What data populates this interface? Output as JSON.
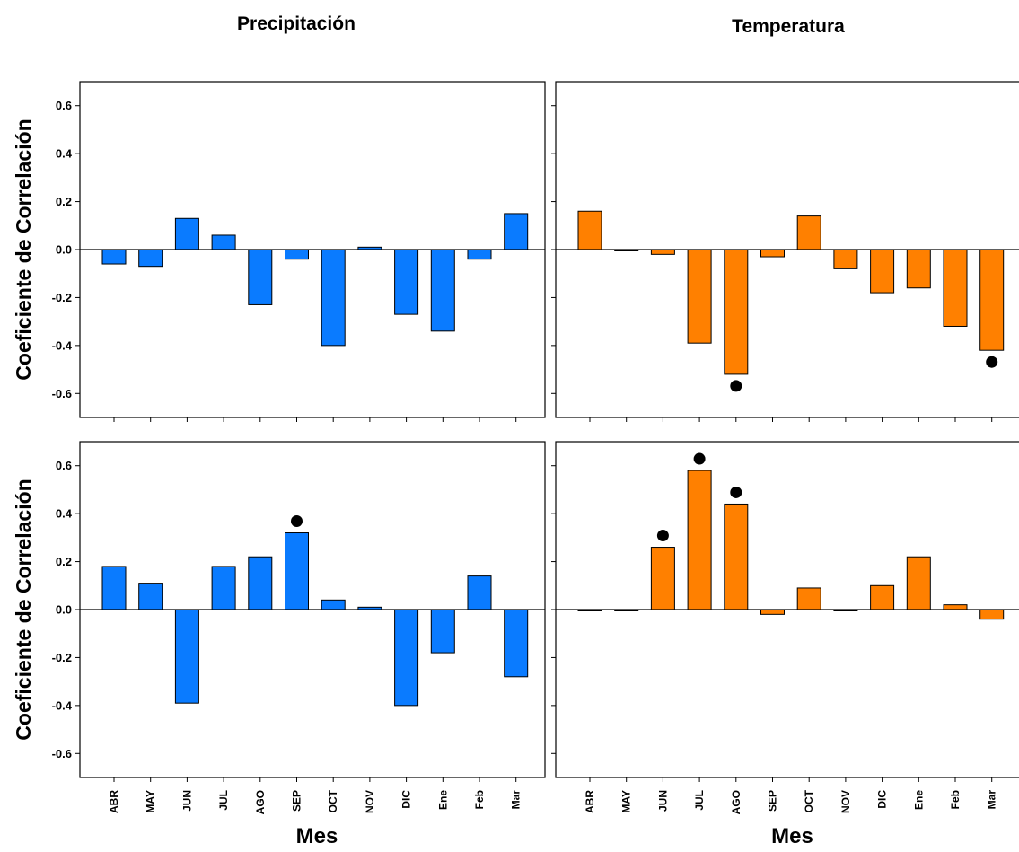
{
  "figure": {
    "column_titles": [
      "Precipitación",
      "Temperatura"
    ],
    "ylabel": "Coeficiente de Correlación",
    "xlabel": "Mes"
  },
  "colors": {
    "precipitation_bar": "#0A7BFF",
    "temperature_bar": "#FF8000",
    "bar_edge": "#000000",
    "significance_marker": "#000000"
  },
  "chart_data": [
    {
      "type": "bar",
      "panel": "top-left",
      "title": "Precipitación",
      "ylabel": "Coeficiente de Correlación",
      "xlabel": "",
      "ylim": [
        -0.7,
        0.7
      ],
      "yticks": [
        -0.6,
        -0.4,
        -0.2,
        0.0,
        0.2,
        0.4,
        0.6
      ],
      "categories": [
        "ABR",
        "MAY",
        "JUN",
        "JUL",
        "AGO",
        "SEP",
        "OCT",
        "NOV",
        "DIC",
        "Ene",
        "Feb",
        "Mar"
      ],
      "show_category_labels": false,
      "values": [
        -0.06,
        -0.07,
        0.13,
        0.06,
        -0.23,
        -0.04,
        -0.4,
        0.01,
        -0.27,
        -0.34,
        -0.04,
        0.15
      ],
      "significant": [
        false,
        false,
        false,
        false,
        false,
        false,
        false,
        false,
        false,
        false,
        false,
        false
      ],
      "color": "#0A7BFF"
    },
    {
      "type": "bar",
      "panel": "top-right",
      "title": "Temperatura",
      "ylabel": "",
      "xlabel": "",
      "ylim": [
        -0.7,
        0.7
      ],
      "yticks": [
        -0.6,
        -0.4,
        -0.2,
        0.0,
        0.2,
        0.4,
        0.6
      ],
      "categories": [
        "ABR",
        "MAY",
        "JUN",
        "JUL",
        "AGO",
        "SEP",
        "OCT",
        "NOV",
        "DIC",
        "Ene",
        "Feb",
        "Mar"
      ],
      "show_category_labels": false,
      "values": [
        0.16,
        0.0,
        -0.02,
        -0.39,
        -0.52,
        -0.03,
        0.14,
        -0.08,
        -0.18,
        -0.16,
        -0.32,
        -0.42
      ],
      "significant": [
        false,
        false,
        false,
        false,
        true,
        false,
        false,
        false,
        false,
        false,
        false,
        true
      ],
      "color": "#FF8000"
    },
    {
      "type": "bar",
      "panel": "bottom-left",
      "title": "",
      "ylabel": "Coeficiente de Correlación",
      "xlabel": "Mes",
      "ylim": [
        -0.7,
        0.7
      ],
      "yticks": [
        -0.6,
        -0.4,
        -0.2,
        0.0,
        0.2,
        0.4,
        0.6
      ],
      "categories": [
        "ABR",
        "MAY",
        "JUN",
        "JUL",
        "AGO",
        "SEP",
        "OCT",
        "NOV",
        "DIC",
        "Ene",
        "Feb",
        "Mar"
      ],
      "show_category_labels": true,
      "values": [
        0.18,
        0.11,
        -0.39,
        0.18,
        0.22,
        0.32,
        0.04,
        0.01,
        -0.4,
        -0.18,
        0.14,
        -0.28
      ],
      "significant": [
        false,
        false,
        false,
        false,
        false,
        true,
        false,
        false,
        false,
        false,
        false,
        false
      ],
      "color": "#0A7BFF"
    },
    {
      "type": "bar",
      "panel": "bottom-right",
      "title": "",
      "ylabel": "",
      "xlabel": "Mes",
      "ylim": [
        -0.7,
        0.7
      ],
      "yticks": [
        -0.6,
        -0.4,
        -0.2,
        0.0,
        0.2,
        0.4,
        0.6
      ],
      "categories": [
        "ABR",
        "MAY",
        "JUN",
        "JUL",
        "AGO",
        "SEP",
        "OCT",
        "NOV",
        "DIC",
        "Ene",
        "Feb",
        "Mar"
      ],
      "show_category_labels": true,
      "values": [
        0.0,
        0.0,
        0.26,
        0.58,
        0.44,
        -0.02,
        0.09,
        0.0,
        0.1,
        0.22,
        0.02,
        -0.04
      ],
      "significant": [
        false,
        false,
        true,
        true,
        true,
        false,
        false,
        false,
        false,
        false,
        false,
        false
      ],
      "color": "#FF8000"
    }
  ]
}
